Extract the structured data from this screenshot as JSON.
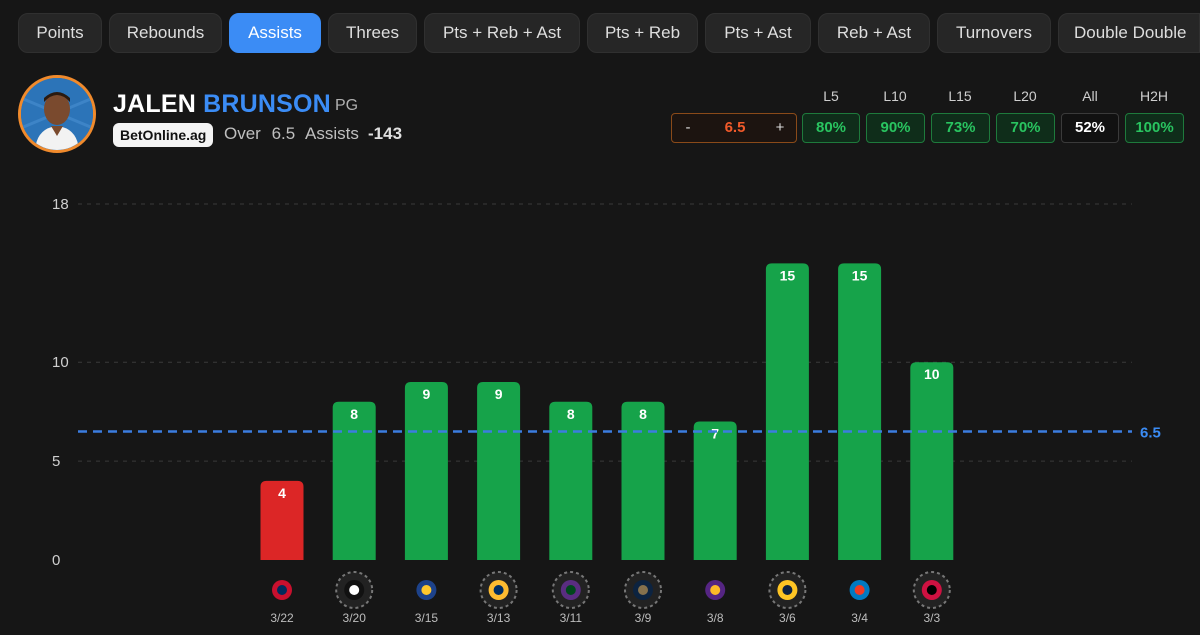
{
  "tabs": [
    {
      "label": "Points",
      "active": false
    },
    {
      "label": "Rebounds",
      "active": false
    },
    {
      "label": "Assists",
      "active": true
    },
    {
      "label": "Threes",
      "active": false
    },
    {
      "label": "Pts + Reb + Ast",
      "active": false
    },
    {
      "label": "Pts + Reb",
      "active": false
    },
    {
      "label": "Pts + Ast",
      "active": false
    },
    {
      "label": "Reb + Ast",
      "active": false
    },
    {
      "label": "Turnovers",
      "active": false
    },
    {
      "label": "Double Double",
      "active": false
    }
  ],
  "player": {
    "first_name": "JALEN",
    "last_name": "BRUNSON",
    "position": "PG"
  },
  "prop": {
    "sportsbook": "BetOnline.ag",
    "side": "Over",
    "line": "6.5",
    "stat": "Assists",
    "odds": "-143"
  },
  "stepper": {
    "minus": "-",
    "value": "6.5",
    "plus": "+"
  },
  "hit_rates": [
    {
      "label": "L5",
      "value": "80%",
      "style": "green"
    },
    {
      "label": "L10",
      "value": "90%",
      "style": "green"
    },
    {
      "label": "L15",
      "value": "73%",
      "style": "green"
    },
    {
      "label": "L20",
      "value": "70%",
      "style": "green"
    },
    {
      "label": "All",
      "value": "52%",
      "style": "neutral"
    },
    {
      "label": "H2H",
      "value": "100%",
      "style": "green"
    }
  ],
  "colors": {
    "accent": "#3b8cf5",
    "over": "#16a34a",
    "under": "#dc2626",
    "threshold": "#3b7de0",
    "stepper_value": "#f15a2a"
  },
  "chart_data": {
    "type": "bar",
    "categories": [
      "3/22",
      "3/20",
      "3/15",
      "3/13",
      "3/11",
      "3/9",
      "3/8",
      "3/6",
      "3/4",
      "3/3"
    ],
    "opponent_icons": [
      "wizards-logo-icon",
      "nets-logo-icon",
      "warriors-logo-icon",
      "pacers-logo-icon",
      "jazz-logo-icon",
      "pelicans-logo-icon",
      "lakers-logo-icon",
      "nuggets-logo-icon",
      "thunder-logo-icon",
      "raptors-logo-icon"
    ],
    "values": [
      4,
      8,
      9,
      9,
      8,
      8,
      7,
      15,
      15,
      10
    ],
    "threshold": 6.5,
    "threshold_label": "6.5",
    "yticks": [
      0,
      5,
      10,
      18
    ],
    "ylim": [
      0,
      18
    ],
    "grid": true
  }
}
